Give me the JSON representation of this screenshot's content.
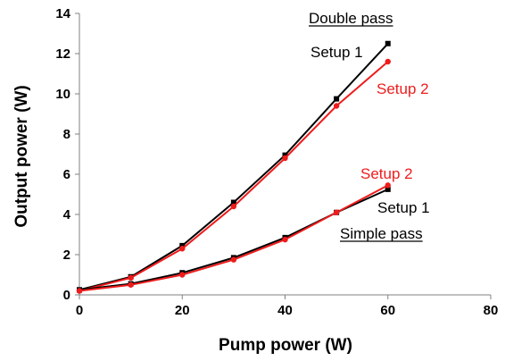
{
  "chart_data": {
    "type": "line",
    "xlabel": "Pump power (W)",
    "ylabel": "Output power (W)",
    "xlim": [
      0,
      80
    ],
    "ylim": [
      0,
      14
    ],
    "xticks": [
      "0",
      "20",
      "40",
      "60",
      "80"
    ],
    "yticks": [
      "0",
      "2",
      "4",
      "6",
      "8",
      "10",
      "12",
      "14"
    ],
    "grid": false,
    "legend": "none",
    "series": [
      {
        "color": "#000000",
        "marker": "square",
        "x": [
          0,
          10,
          20,
          30,
          40,
          50,
          60
        ],
        "y": [
          0.25,
          0.9,
          2.45,
          4.6,
          6.95,
          9.75,
          12.5
        ]
      },
      {
        "color": "#ee1c1c",
        "marker": "circle",
        "x": [
          0,
          10,
          20,
          30,
          40,
          50,
          60
        ],
        "y": [
          0.2,
          0.85,
          2.3,
          4.4,
          6.8,
          9.4,
          11.6
        ]
      },
      {
        "color": "#000000",
        "marker": "square",
        "x": [
          0,
          10,
          20,
          30,
          40,
          50,
          60
        ],
        "y": [
          0.25,
          0.55,
          1.1,
          1.85,
          2.85,
          4.1,
          5.25
        ]
      },
      {
        "color": "#ee1c1c",
        "marker": "circle",
        "x": [
          0,
          10,
          20,
          30,
          40,
          50,
          60
        ],
        "y": [
          0.2,
          0.5,
          1.0,
          1.75,
          2.75,
          4.1,
          5.45
        ]
      }
    ],
    "annotations": [
      {
        "text": "Double pass",
        "color": "#000000",
        "underline": true
      },
      {
        "text": "Setup 1",
        "color": "#000000"
      },
      {
        "text": "Setup 2",
        "color": "#ee1c1c"
      },
      {
        "text": "Setup 2",
        "color": "#ee1c1c"
      },
      {
        "text": "Setup 1",
        "color": "#000000"
      },
      {
        "text": "Simple pass",
        "color": "#000000",
        "underline": true
      }
    ]
  }
}
